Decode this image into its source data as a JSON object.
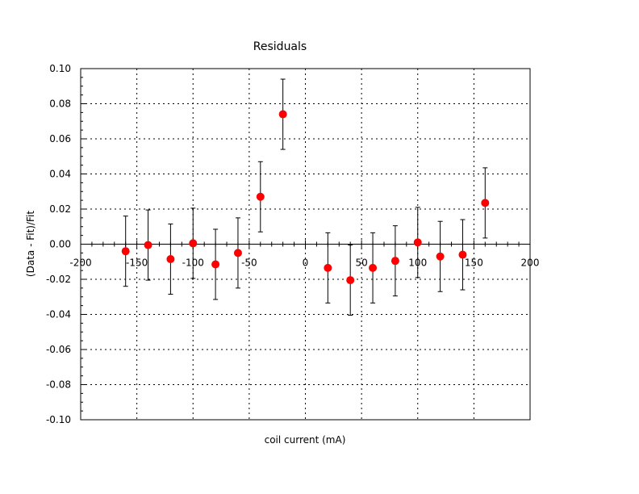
{
  "chart_data": {
    "type": "scatter",
    "title": "Residuals",
    "xlabel": "coil current (mA)",
    "ylabel": "(Data - Fit)/Fit",
    "xlim": [
      -200,
      200
    ],
    "ylim": [
      -0.1,
      0.1
    ],
    "x_ticks": [
      -200,
      -150,
      -100,
      -50,
      0,
      50,
      100,
      150,
      200
    ],
    "x_tick_labels": [
      "-200",
      "-150",
      "-100",
      "-50",
      "0",
      "50",
      "100",
      "150",
      "200"
    ],
    "y_ticks": [
      -0.1,
      -0.08,
      -0.06,
      -0.04,
      -0.02,
      0.0,
      0.02,
      0.04,
      0.06,
      0.08,
      0.1
    ],
    "y_tick_labels": [
      "-0.10",
      "-0.08",
      "-0.06",
      "-0.04",
      "-0.02",
      "0.00",
      "0.02",
      "0.04",
      "0.06",
      "0.08",
      "0.10"
    ],
    "grid": true,
    "marker_color": "#ff0000",
    "errorbar_color": "#000000",
    "series": [
      {
        "x": [
          -160,
          -140,
          -120,
          -100,
          -80,
          -60,
          -40,
          -20,
          20,
          40,
          60,
          80,
          100,
          120,
          140,
          160
        ],
        "y": [
          -0.004,
          -0.0005,
          -0.0085,
          0.0005,
          -0.0115,
          -0.005,
          0.027,
          0.074,
          -0.0135,
          -0.0205,
          -0.0135,
          -0.0095,
          0.001,
          -0.007,
          -0.006,
          0.0235
        ],
        "yerr": [
          0.02,
          0.02,
          0.02,
          0.02,
          0.02,
          0.02,
          0.02,
          0.02,
          0.02,
          0.02,
          0.02,
          0.02,
          0.02,
          0.02,
          0.02,
          0.02
        ]
      }
    ]
  }
}
